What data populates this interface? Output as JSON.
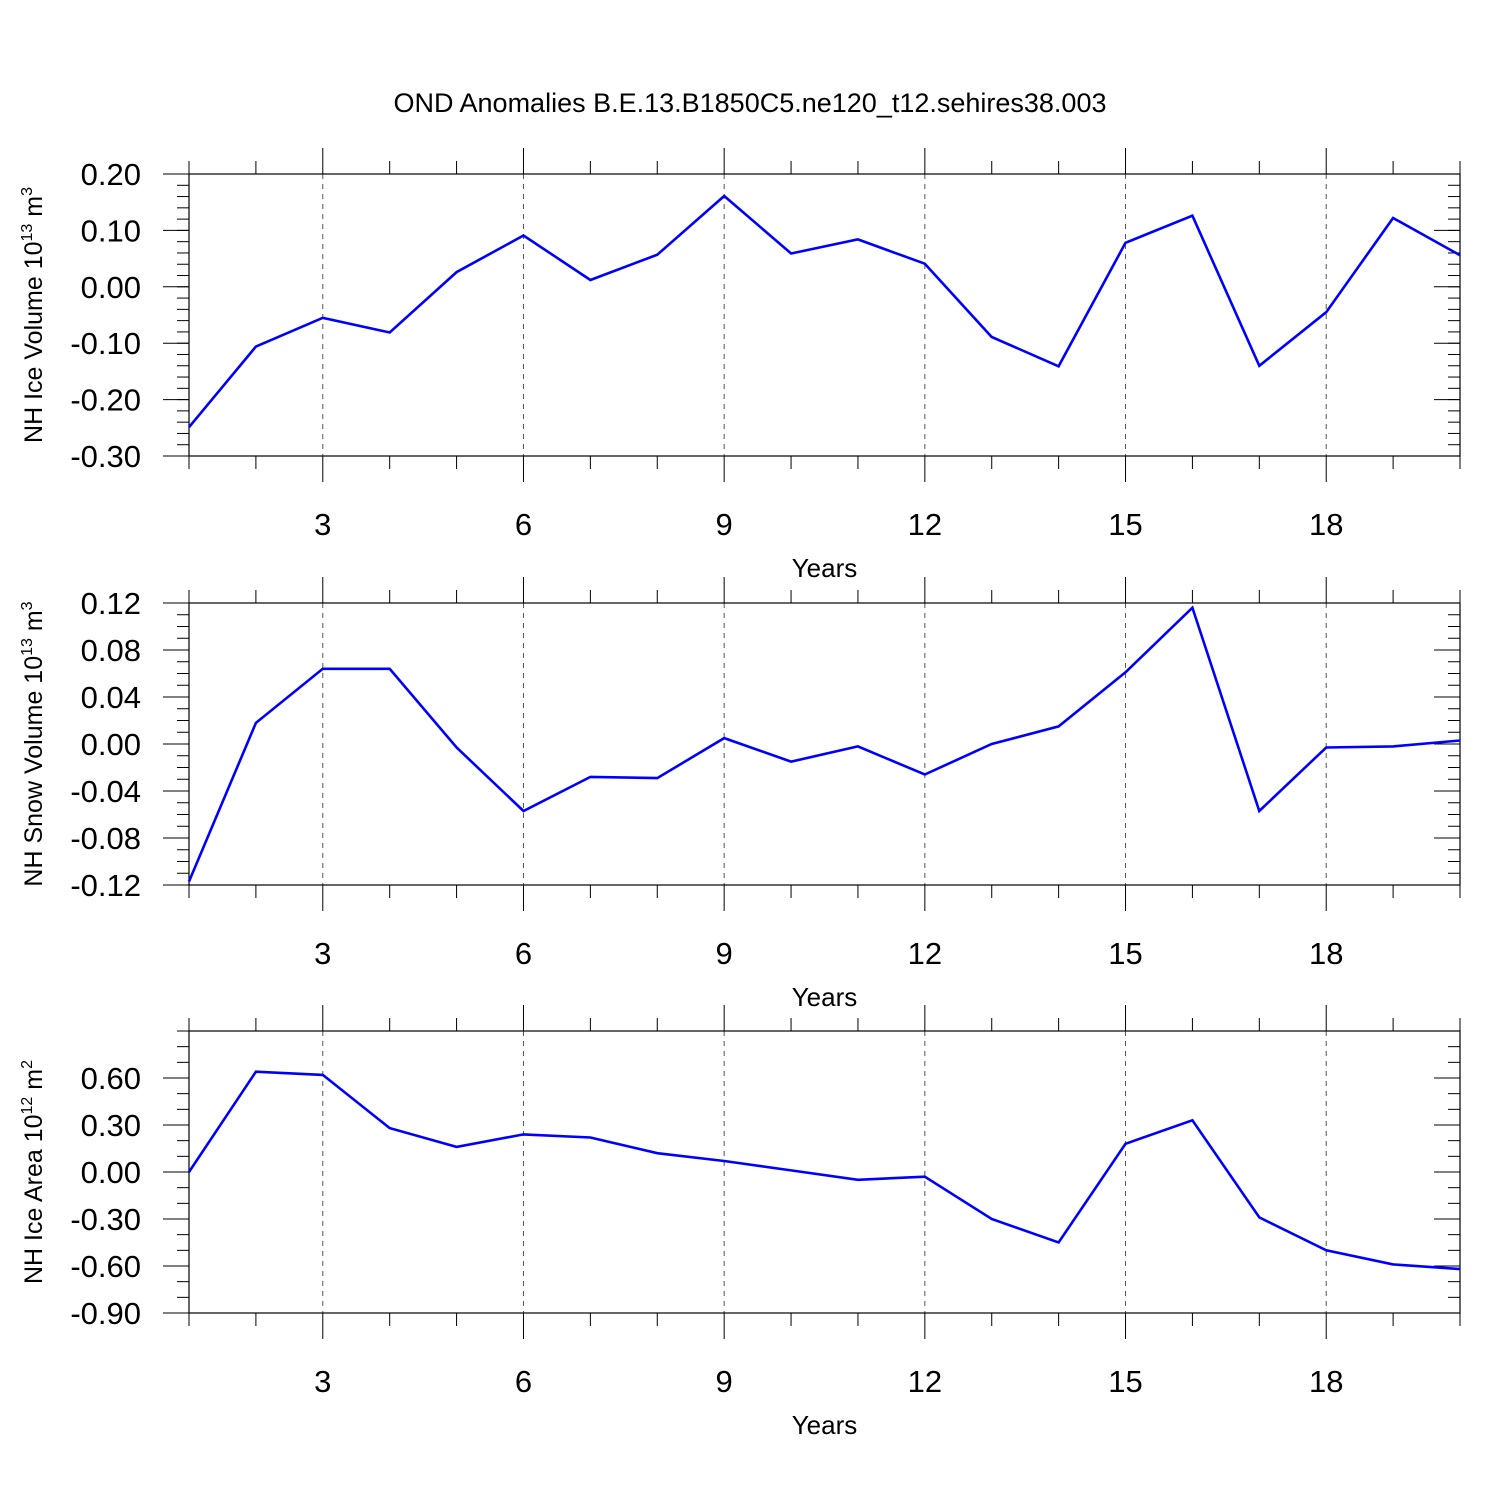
{
  "title": "OND Anomalies B.E.13.B1850C5.ne120_t12.sehires38.003",
  "line_color": "#0000ff",
  "chart_data": [
    {
      "type": "line",
      "ylabel": {
        "main": "NH Ice Volume 10",
        "exp": "13",
        "unit": " m",
        "unit_exp": "3"
      },
      "xlabel": "Years",
      "xlim": [
        1,
        20
      ],
      "x_ticks": [
        3,
        6,
        9,
        12,
        15,
        18
      ],
      "x_tick_labels": [
        "3",
        "6",
        "9",
        "12",
        "15",
        "18"
      ],
      "ylim": [
        -0.3,
        0.2
      ],
      "y_ticks": [
        0.2,
        0.1,
        0.0,
        -0.1,
        -0.2,
        -0.3
      ],
      "y_tick_labels": [
        "0.20",
        "0.10",
        "0.00",
        "-0.10",
        "-0.20",
        "-0.30"
      ],
      "y_minor_step": 0.02,
      "grid": "vertical dashed at major x ticks",
      "series": [
        {
          "x": [
            1,
            2,
            3,
            4,
            5,
            6,
            7,
            8,
            9,
            10,
            11,
            12,
            13,
            14,
            15,
            16,
            17,
            18,
            19,
            20
          ],
          "values": [
            -0.249,
            -0.106,
            -0.055,
            -0.081,
            0.026,
            0.091,
            0.012,
            0.057,
            0.161,
            0.059,
            0.084,
            0.041,
            -0.089,
            -0.141,
            0.078,
            0.126,
            -0.14,
            -0.045,
            0.122,
            0.056
          ]
        }
      ]
    },
    {
      "type": "line",
      "ylabel": {
        "main": "NH Snow Volume 10",
        "exp": "13",
        "unit": " m",
        "unit_exp": "3"
      },
      "xlabel": "Years",
      "xlim": [
        1,
        20
      ],
      "x_ticks": [
        3,
        6,
        9,
        12,
        15,
        18
      ],
      "x_tick_labels": [
        "3",
        "6",
        "9",
        "12",
        "15",
        "18"
      ],
      "ylim": [
        -0.12,
        0.12
      ],
      "y_ticks": [
        0.12,
        0.08,
        0.04,
        0.0,
        -0.04,
        -0.08,
        -0.12
      ],
      "y_tick_labels": [
        "0.12",
        "0.08",
        "0.04",
        "0.00",
        "-0.04",
        "-0.08",
        "-0.12"
      ],
      "y_minor_step": 0.01,
      "grid": "vertical dashed at major x ticks",
      "series": [
        {
          "x": [
            1,
            2,
            3,
            4,
            5,
            6,
            7,
            8,
            9,
            10,
            11,
            12,
            13,
            14,
            15,
            16,
            17,
            18,
            19,
            20
          ],
          "values": [
            -0.117,
            0.018,
            0.064,
            0.064,
            -0.003,
            -0.057,
            -0.028,
            -0.029,
            0.005,
            -0.015,
            -0.002,
            -0.026,
            0.0,
            0.015,
            0.061,
            0.116,
            -0.057,
            -0.003,
            -0.002,
            0.003
          ]
        }
      ]
    },
    {
      "type": "line",
      "ylabel": {
        "main": "NH Ice Area 10",
        "exp": "12",
        "unit": " m",
        "unit_exp": "2"
      },
      "xlabel": "Years",
      "xlim": [
        1,
        20
      ],
      "x_ticks": [
        3,
        6,
        9,
        12,
        15,
        18
      ],
      "x_tick_labels": [
        "3",
        "6",
        "9",
        "12",
        "15",
        "18"
      ],
      "ylim": [
        -0.9,
        0.9
      ],
      "y_ticks": [
        0.6,
        0.3,
        0.0,
        -0.3,
        -0.6,
        -0.9
      ],
      "y_tick_labels": [
        "0.60",
        "0.30",
        "0.00",
        "-0.30",
        "-0.60",
        "-0.90"
      ],
      "y_minor_step": 0.1,
      "grid": "vertical dashed at major x ticks",
      "series": [
        {
          "x": [
            1,
            2,
            3,
            4,
            5,
            6,
            7,
            8,
            9,
            10,
            11,
            12,
            13,
            14,
            15,
            16,
            17,
            18,
            19,
            20
          ],
          "values": [
            0.0,
            0.64,
            0.62,
            0.28,
            0.16,
            0.24,
            0.22,
            0.12,
            0.07,
            0.01,
            -0.05,
            -0.03,
            -0.3,
            -0.45,
            0.18,
            0.33,
            -0.29,
            -0.5,
            -0.59,
            -0.62
          ]
        }
      ]
    }
  ]
}
